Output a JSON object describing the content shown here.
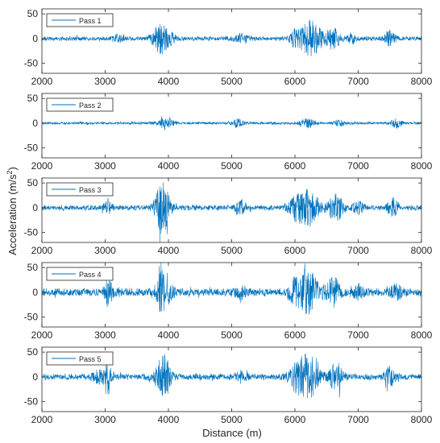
{
  "chart_data": {
    "type": "line",
    "xlabel": "Distance (m)",
    "ylabel_main": "Acceleration (m/s",
    "ylabel_exp": "2",
    "ylabel_close": ")",
    "xlim": [
      2000,
      8000
    ],
    "ylim": [
      -70,
      60
    ],
    "xticks": [
      "2000",
      "3000",
      "4000",
      "5000",
      "6000",
      "7000",
      "8000"
    ],
    "yticks": [
      {
        "value": 50,
        "label": "50"
      },
      {
        "value": 0,
        "label": "0"
      },
      {
        "value": -50,
        "label": "-50"
      }
    ],
    "series_color": "#0072BD",
    "grid": false,
    "legend_position": "top-left",
    "series": [
      {
        "name": "Pass 1",
        "base_amplitude": 5,
        "envelope": [
          {
            "center": 3200,
            "width": 60,
            "amp": 6
          },
          {
            "center": 3880,
            "width": 90,
            "amp": 30
          },
          {
            "center": 4050,
            "width": 50,
            "amp": 8
          },
          {
            "center": 5150,
            "width": 80,
            "amp": 8
          },
          {
            "center": 6000,
            "width": 60,
            "amp": 14
          },
          {
            "center": 6250,
            "width": 120,
            "amp": 34
          },
          {
            "center": 6600,
            "width": 80,
            "amp": 20
          },
          {
            "center": 6900,
            "width": 40,
            "amp": 10
          },
          {
            "center": 7500,
            "width": 60,
            "amp": 14
          }
        ]
      },
      {
        "name": "Pass 2",
        "base_amplitude": 3,
        "envelope": [
          {
            "center": 3950,
            "width": 90,
            "amp": 10
          },
          {
            "center": 5100,
            "width": 60,
            "amp": 8
          },
          {
            "center": 6200,
            "width": 80,
            "amp": 8
          },
          {
            "center": 6700,
            "width": 60,
            "amp": 6
          },
          {
            "center": 7600,
            "width": 60,
            "amp": 8
          }
        ]
      },
      {
        "name": "Pass 3",
        "base_amplitude": 6,
        "envelope": [
          {
            "center": 3900,
            "width": 80,
            "amp": 50
          },
          {
            "center": 3050,
            "width": 50,
            "amp": 10
          },
          {
            "center": 5150,
            "width": 60,
            "amp": 14
          },
          {
            "center": 6000,
            "width": 80,
            "amp": 14
          },
          {
            "center": 6200,
            "width": 120,
            "amp": 35
          },
          {
            "center": 6650,
            "width": 80,
            "amp": 28
          },
          {
            "center": 7000,
            "width": 60,
            "amp": 12
          },
          {
            "center": 7550,
            "width": 60,
            "amp": 18
          }
        ]
      },
      {
        "name": "Pass 4",
        "base_amplitude": 9,
        "envelope": [
          {
            "center": 3050,
            "width": 40,
            "amp": 28
          },
          {
            "center": 3920,
            "width": 80,
            "amp": 42
          },
          {
            "center": 5150,
            "width": 60,
            "amp": 12
          },
          {
            "center": 6000,
            "width": 80,
            "amp": 16
          },
          {
            "center": 6200,
            "width": 120,
            "amp": 40
          },
          {
            "center": 6600,
            "width": 80,
            "amp": 28
          },
          {
            "center": 7000,
            "width": 60,
            "amp": 14
          },
          {
            "center": 7600,
            "width": 60,
            "amp": 16
          }
        ]
      },
      {
        "name": "Pass 5",
        "base_amplitude": 7,
        "envelope": [
          {
            "center": 2900,
            "width": 80,
            "amp": 10
          },
          {
            "center": 3050,
            "width": 40,
            "amp": 30
          },
          {
            "center": 3920,
            "width": 80,
            "amp": 45
          },
          {
            "center": 5150,
            "width": 60,
            "amp": 10
          },
          {
            "center": 6000,
            "width": 80,
            "amp": 16
          },
          {
            "center": 6200,
            "width": 120,
            "amp": 42
          },
          {
            "center": 6650,
            "width": 80,
            "amp": 26
          },
          {
            "center": 7500,
            "width": 60,
            "amp": 18
          }
        ]
      }
    ]
  }
}
